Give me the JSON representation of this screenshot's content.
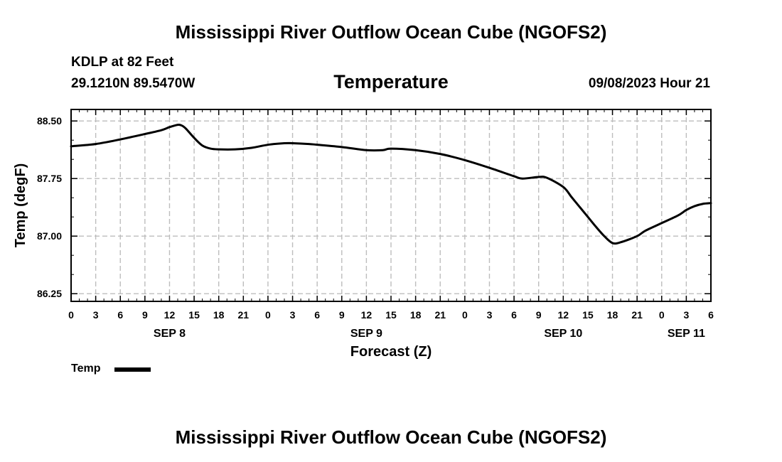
{
  "header": {
    "title": "Mississippi River Outflow Ocean Cube (NGOFS2)",
    "station_line": "KDLP at 82 Feet",
    "coords_line": "29.1210N  89.5470W",
    "variable": "Temperature",
    "datetime": "09/08/2023 Hour 21"
  },
  "footer": {
    "title": "Mississippi River Outflow Ocean Cube (NGOFS2)"
  },
  "legend": {
    "label": "Temp",
    "color": "#000000"
  },
  "chart_data": {
    "type": "line",
    "title": "Temperature",
    "xlabel": "Forecast (Z)",
    "ylabel": "Temp (degF)",
    "xlim": [
      0,
      78
    ],
    "ylim": [
      86.15,
      88.65
    ],
    "grid": true,
    "x_ticks": [
      0,
      3,
      6,
      9,
      12,
      15,
      18,
      21,
      24,
      27,
      30,
      33,
      36,
      39,
      42,
      45,
      48,
      51,
      54,
      57,
      60,
      63,
      66,
      69,
      72,
      75,
      78
    ],
    "x_tick_labels": [
      "0",
      "3",
      "6",
      "9",
      "12",
      "15",
      "18",
      "21",
      "0",
      "3",
      "6",
      "9",
      "12",
      "15",
      "18",
      "21",
      "0",
      "3",
      "6",
      "9",
      "12",
      "15",
      "18",
      "21",
      "0",
      "3",
      "6"
    ],
    "y_ticks": [
      86.25,
      87.0,
      87.75,
      88.5
    ],
    "y_tick_labels": [
      "86.25",
      "87.00",
      "87.75",
      "88.50"
    ],
    "day_labels": [
      {
        "x": 12,
        "label": "SEP 8"
      },
      {
        "x": 36,
        "label": "SEP 9"
      },
      {
        "x": 60,
        "label": "SEP 10"
      },
      {
        "x": 75,
        "label": "SEP 11"
      }
    ],
    "series": [
      {
        "name": "Temp",
        "x": [
          0,
          3,
          6,
          9,
          11,
          12,
          13,
          13.5,
          14,
          15,
          16,
          17,
          18,
          20,
          22,
          24,
          26,
          27,
          29,
          30,
          33,
          36,
          38,
          39,
          42,
          45,
          48,
          51,
          54,
          55,
          57,
          58,
          60,
          61,
          62,
          63,
          64,
          65,
          66,
          67,
          69,
          70,
          72,
          74,
          75,
          76,
          77,
          78
        ],
        "values": [
          88.17,
          88.2,
          88.26,
          88.33,
          88.38,
          88.42,
          88.45,
          88.44,
          88.4,
          88.28,
          88.18,
          88.14,
          88.13,
          88.13,
          88.15,
          88.19,
          88.21,
          88.21,
          88.2,
          88.19,
          88.16,
          88.12,
          88.12,
          88.14,
          88.12,
          88.07,
          87.99,
          87.89,
          87.78,
          87.75,
          87.77,
          87.76,
          87.64,
          87.51,
          87.38,
          87.25,
          87.12,
          87.0,
          86.91,
          86.92,
          87.0,
          87.07,
          87.17,
          87.27,
          87.34,
          87.39,
          87.42,
          87.43
        ]
      }
    ]
  }
}
